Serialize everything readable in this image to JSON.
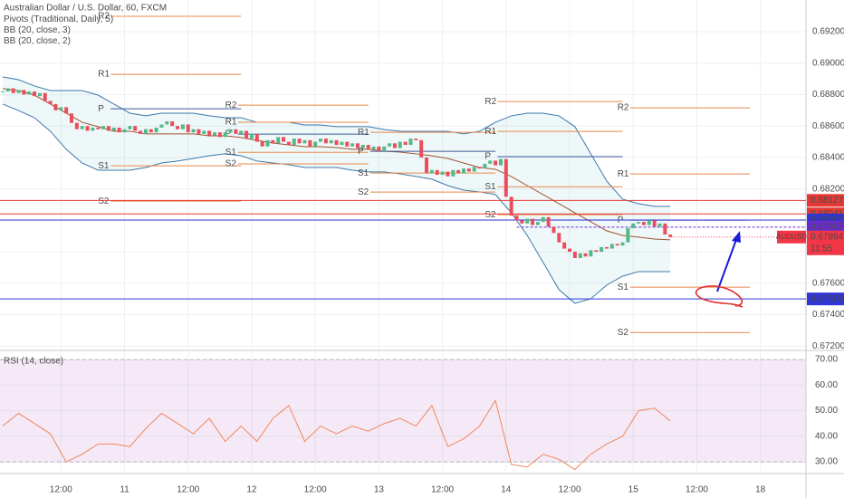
{
  "chart_data": {
    "type": "candlestick",
    "title": "Australian Dollar / U.S. Dollar, 60, FXCM",
    "indicators": [
      "Pivots (Traditional, Daily, 5)",
      "BB (20, close, 3)",
      "BB (20, close, 2)"
    ],
    "xlim": [
      -0.5,
      151.6
    ],
    "xticks": [
      {
        "value": 11,
        "label": "12:00"
      },
      {
        "value": 23,
        "label": "11"
      },
      {
        "value": 35,
        "label": "12:00"
      },
      {
        "value": 47,
        "label": "12"
      },
      {
        "value": 59,
        "label": "12:00"
      },
      {
        "value": 71,
        "label": "13"
      },
      {
        "value": 83,
        "label": "12:00"
      },
      {
        "value": 95,
        "label": "14"
      },
      {
        "value": 107,
        "label": "12:00"
      },
      {
        "value": 119,
        "label": "15"
      },
      {
        "value": 131,
        "label": "12:00"
      },
      {
        "value": 143,
        "label": "18"
      }
    ],
    "ylim": [
      0.67184,
      0.69402
    ],
    "yticks": [
      {
        "value": 0.672,
        "label": "0.67200"
      },
      {
        "value": 0.674,
        "label": "0.67400"
      },
      {
        "value": 0.676,
        "label": "0.67600"
      },
      {
        "value": 0.678,
        "label": "0.67800"
      },
      {
        "value": 0.68,
        "label": "0.68000"
      },
      {
        "value": 0.682,
        "label": "0.68200"
      },
      {
        "value": 0.684,
        "label": "0.68400"
      },
      {
        "value": 0.686,
        "label": "0.68600"
      },
      {
        "value": 0.688,
        "label": "0.68800"
      },
      {
        "value": 0.69,
        "label": "0.69000"
      },
      {
        "value": 0.692,
        "label": "0.69200"
      }
    ],
    "grid": true,
    "up_color": "#53b987",
    "down_color": "#eb4d5c",
    "candles": {
      "close": [
        0.6882,
        0.6884,
        0.6881,
        0.6883,
        0.688,
        0.6882,
        0.6879,
        0.6881,
        0.6876,
        0.6874,
        0.687,
        0.6872,
        0.6868,
        0.6862,
        0.6858,
        0.686,
        0.6857,
        0.6859,
        0.6858,
        0.686,
        0.6857,
        0.6859,
        0.6856,
        0.6858,
        0.686,
        0.6857,
        0.6855,
        0.6858,
        0.6856,
        0.6859,
        0.6861,
        0.6863,
        0.686,
        0.6858,
        0.6861,
        0.6856,
        0.6858,
        0.6855,
        0.6857,
        0.6854,
        0.6856,
        0.6853,
        0.6856,
        0.6858,
        0.6855,
        0.6857,
        0.6852,
        0.6855,
        0.685,
        0.6847,
        0.6851,
        0.6849,
        0.6853,
        0.685,
        0.6848,
        0.6852,
        0.6849,
        0.6851,
        0.6847,
        0.685,
        0.6852,
        0.6849,
        0.6851,
        0.6848,
        0.685,
        0.6847,
        0.6849,
        0.6846,
        0.6848,
        0.6845,
        0.6847,
        0.6844,
        0.6847,
        0.6849,
        0.6846,
        0.685,
        0.6848,
        0.6852,
        0.6851,
        0.684,
        0.683,
        0.6832,
        0.6829,
        0.6831,
        0.6828,
        0.6832,
        0.683,
        0.6833,
        0.6831,
        0.6834,
        0.6833,
        0.6836,
        0.6838,
        0.6835,
        0.6839,
        0.6815,
        0.6803,
        0.68,
        0.6798,
        0.6801,
        0.6797,
        0.6799,
        0.6802,
        0.6796,
        0.6792,
        0.6786,
        0.6782,
        0.678,
        0.6776,
        0.6779,
        0.6777,
        0.6781,
        0.678,
        0.6783,
        0.6782,
        0.6785,
        0.6784,
        0.6786,
        0.6795,
        0.6798,
        0.6799,
        0.6797,
        0.68,
        0.6796,
        0.6798,
        0.6791,
        0.67894
      ]
    },
    "bands": {
      "color": "#3c78a8",
      "middle_color": "#a0522d",
      "x": [
        0,
        3,
        6,
        9,
        12,
        15,
        18,
        21,
        24,
        27,
        30,
        33,
        36,
        39,
        42,
        45,
        48,
        51,
        54,
        57,
        60,
        63,
        66,
        69,
        72,
        75,
        78,
        81,
        84,
        87,
        90,
        93,
        96,
        99,
        102,
        105,
        108,
        111,
        114,
        117,
        120,
        123,
        126
      ],
      "upper": [
        0.68912,
        0.68895,
        0.68855,
        0.68826,
        0.68826,
        0.68826,
        0.68797,
        0.6874,
        0.68682,
        0.68665,
        0.68682,
        0.68682,
        0.68682,
        0.68665,
        0.68653,
        0.68653,
        0.68624,
        0.68624,
        0.68624,
        0.68607,
        0.68607,
        0.68596,
        0.68596,
        0.68596,
        0.68578,
        0.68567,
        0.68567,
        0.68567,
        0.68567,
        0.6855,
        0.68567,
        0.68624,
        0.68665,
        0.68682,
        0.68682,
        0.68665,
        0.68596,
        0.68423,
        0.6825,
        0.68135,
        0.68106,
        0.68089,
        0.68089
      ],
      "middle": [
        0.68838,
        0.68826,
        0.68797,
        0.6874,
        0.68682,
        0.68624,
        0.68596,
        0.68567,
        0.68567,
        0.6855,
        0.6855,
        0.6855,
        0.6855,
        0.68538,
        0.68538,
        0.68527,
        0.68509,
        0.68492,
        0.6848,
        0.68469,
        0.68469,
        0.68463,
        0.68452,
        0.68452,
        0.6844,
        0.68434,
        0.68423,
        0.68411,
        0.68394,
        0.68365,
        0.68336,
        0.68325,
        0.68279,
        0.68221,
        0.68164,
        0.68106,
        0.68048,
        0.67991,
        0.67933,
        0.67904,
        0.67893,
        0.67881,
        0.67876
      ],
      "lower": [
        0.6874,
        0.68699,
        0.68653,
        0.68567,
        0.68452,
        0.68365,
        0.68319,
        0.68319,
        0.68319,
        0.68336,
        0.68365,
        0.68377,
        0.68394,
        0.68411,
        0.68423,
        0.68411,
        0.68377,
        0.68365,
        0.68354,
        0.68336,
        0.68336,
        0.68336,
        0.68319,
        0.68308,
        0.68308,
        0.68296,
        0.68279,
        0.68262,
        0.68221,
        0.68192,
        0.68181,
        0.68164,
        0.68048,
        0.67904,
        0.67732,
        0.67559,
        0.67472,
        0.67501,
        0.67588,
        0.67645,
        0.67674,
        0.67674,
        0.67674
      ]
    },
    "pivots": [
      {
        "start": 18,
        "end": 45,
        "levels": [
          {
            "name": "R2",
            "value": 0.69298
          },
          {
            "name": "R1",
            "value": 0.68929
          },
          {
            "name": "P",
            "value": 0.6871
          },
          {
            "name": "S1",
            "value": 0.68347
          },
          {
            "name": "S2",
            "value": 0.68122
          }
        ]
      },
      {
        "start": 42,
        "end": 69,
        "levels": [
          {
            "name": "R2",
            "value": 0.68733
          },
          {
            "name": "R1",
            "value": 0.68624
          },
          {
            "name": "P",
            "value": 0.68549
          },
          {
            "name": "S1",
            "value": 0.68433
          },
          {
            "name": "S2",
            "value": 0.68359
          }
        ]
      },
      {
        "start": 67,
        "end": 93,
        "levels": [
          {
            "name": "R1",
            "value": 0.6856
          },
          {
            "name": "P",
            "value": 0.68439
          },
          {
            "name": "S1",
            "value": 0.68301
          },
          {
            "name": "S2",
            "value": 0.6818
          }
        ]
      },
      {
        "start": 91,
        "end": 117,
        "levels": [
          {
            "name": "R2",
            "value": 0.68756
          },
          {
            "name": "R1",
            "value": 0.68566
          },
          {
            "name": "P",
            "value": 0.68405
          },
          {
            "name": "S1",
            "value": 0.68214
          },
          {
            "name": "S2",
            "value": 0.68036
          }
        ]
      },
      {
        "start": 116,
        "end": 141,
        "levels": [
          {
            "name": "R2",
            "value": 0.68716
          },
          {
            "name": "R1",
            "value": 0.68295
          },
          {
            "name": "P",
            "value": 0.68001
          },
          {
            "name": "S1",
            "value": 0.67575
          },
          {
            "name": "S2",
            "value": 0.67286
          }
        ]
      }
    ],
    "pivot_color": "#e8894a",
    "pivot_p_color": "#3d5a99",
    "lines": [
      {
        "value": 0.68127,
        "label": "0.68127",
        "color": "#e53935"
      },
      {
        "value": 0.68041,
        "label": "0.68041",
        "color": "#e53935"
      },
      {
        "value": 0.68002,
        "label": "0.68002",
        "color": "#2f35d6"
      },
      {
        "value": 0.67957,
        "label": "0.67957",
        "color": "#6a2bd0",
        "dashed": true,
        "start": 97
      },
      {
        "value": 0.675,
        "label": "0.67500",
        "color": "#2f35d6"
      }
    ],
    "last_price": {
      "symbol": "AUDUSD",
      "value": 0.67894,
      "label": "0.67894",
      "countdown": "11:55",
      "color": "#f23645"
    },
    "rsi": {
      "title": "RSI (14, close)",
      "color": "#f0875a",
      "ylim": [
        26.5,
        72.5
      ],
      "yticks": [
        {
          "value": 30,
          "label": "30.00"
        },
        {
          "value": 40,
          "label": "40.00"
        },
        {
          "value": 50,
          "label": "50.00"
        },
        {
          "value": 60,
          "label": "60.00"
        },
        {
          "value": 70,
          "label": "70.00"
        }
      ],
      "band": [
        30,
        70
      ],
      "x": [
        0,
        3,
        6,
        9,
        12,
        15,
        18,
        21,
        24,
        27,
        30,
        33,
        36,
        39,
        42,
        45,
        48,
        51,
        54,
        57,
        60,
        63,
        66,
        69,
        72,
        75,
        78,
        81,
        84,
        87,
        90,
        93,
        96,
        99,
        102,
        105,
        108,
        111,
        114,
        117,
        120,
        123,
        126
      ],
      "values": [
        44,
        49,
        45,
        41,
        30,
        33,
        37,
        37,
        36,
        43,
        49,
        45,
        41,
        47,
        38,
        44,
        38,
        47,
        52,
        38,
        44,
        41,
        44,
        42,
        45,
        47,
        44,
        52,
        36,
        39,
        44,
        54,
        29,
        28,
        33,
        31,
        27,
        33,
        37,
        40,
        50,
        51,
        46
      ]
    }
  }
}
